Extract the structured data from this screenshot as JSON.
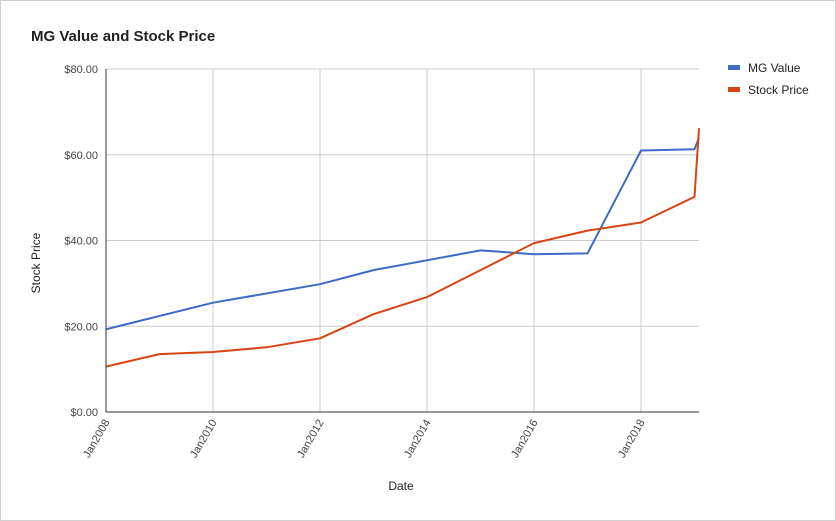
{
  "chart_data": {
    "type": "line",
    "title": "MG Value and Stock Price",
    "xlabel": "Date",
    "ylabel": "Stock Price",
    "ylim": [
      0,
      80
    ],
    "xlim": [
      "2008-01",
      "2019-02"
    ],
    "y_ticks": [
      "$0.00",
      "$20.00",
      "$40.00",
      "$60.00",
      "$80.00"
    ],
    "x_ticks": [
      "Jan2008",
      "Jan2010",
      "Jan2012",
      "Jan2014",
      "Jan2016",
      "Jan2018"
    ],
    "grid": true,
    "legend": "right",
    "series": [
      {
        "name": "MG Value",
        "color": "#3c6ac4",
        "points": [
          [
            "2008-01",
            19.3
          ],
          [
            "2010-01",
            25.5
          ],
          [
            "2012-01",
            29.8
          ],
          [
            "2013-01",
            33.1
          ],
          [
            "2015-01",
            37.7
          ],
          [
            "2016-01",
            36.8
          ],
          [
            "2017-01",
            37.0
          ],
          [
            "2018-01",
            61.0
          ],
          [
            "2019-01",
            61.3
          ],
          [
            "2019-02",
            64.0
          ]
        ]
      },
      {
        "name": "Stock Price",
        "color": "#d64514",
        "points": [
          [
            "2008-01",
            10.6
          ],
          [
            "2009-01",
            13.5
          ],
          [
            "2010-01",
            14.0
          ],
          [
            "2011-01",
            15.1
          ],
          [
            "2012-01",
            17.2
          ],
          [
            "2013-01",
            22.8
          ],
          [
            "2014-01",
            26.8
          ],
          [
            "2016-01",
            39.4
          ],
          [
            "2017-01",
            42.3
          ],
          [
            "2018-01",
            44.2
          ],
          [
            "2019-01",
            50.2
          ],
          [
            "2019-02",
            66.2
          ]
        ]
      }
    ]
  }
}
